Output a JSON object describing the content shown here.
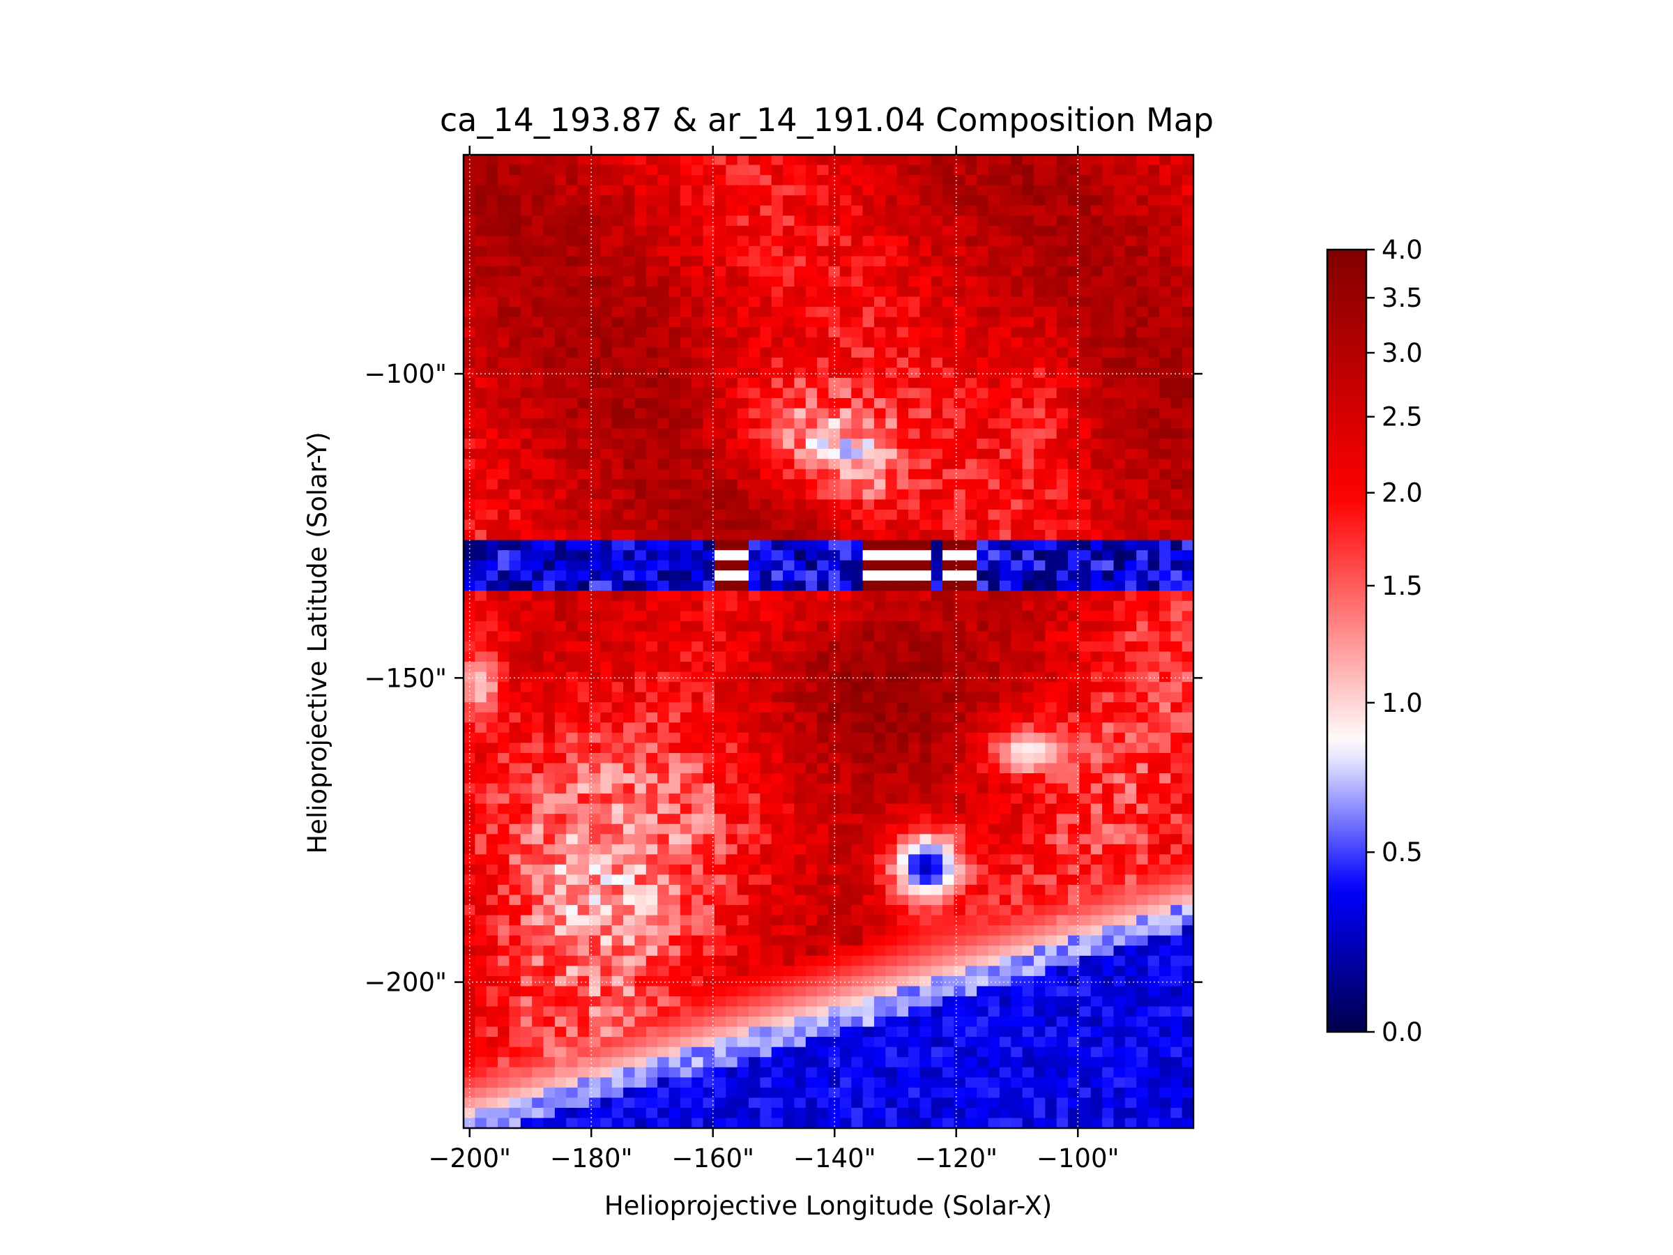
{
  "chart_data": {
    "type": "heatmap",
    "title": "ca_14_193.87 & ar_14_191.04 Composition Map",
    "xlabel": "Helioprojective Longitude (Solar-X)",
    "ylabel": "Helioprojective Latitude (Solar-Y)",
    "xlim": [
      -201,
      -81
    ],
    "ylim": [
      -224,
      -64
    ],
    "x_ticks": [
      {
        "value": -200,
        "label": "−200\""
      },
      {
        "value": -180,
        "label": "−180\""
      },
      {
        "value": -160,
        "label": "−160\""
      },
      {
        "value": -140,
        "label": "−140\""
      },
      {
        "value": -120,
        "label": "−120\""
      },
      {
        "value": -100,
        "label": "−100\""
      }
    ],
    "y_ticks": [
      {
        "value": -100,
        "label": "−100\""
      },
      {
        "value": -150,
        "label": "−150\""
      },
      {
        "value": -200,
        "label": "−200\""
      }
    ],
    "grid": true,
    "colormap": "seismic",
    "colormap_stops": [
      "#00004c",
      "#0000ff",
      "#ffffff",
      "#ff0000",
      "#800000"
    ],
    "colorbar": {
      "vmin": 0.0,
      "vmax": 4.0,
      "norm": "asinh",
      "ticks": [
        {
          "value": 0.0,
          "label": "0.0"
        },
        {
          "value": 0.5,
          "label": "0.5"
        },
        {
          "value": 1.0,
          "label": "1.0"
        },
        {
          "value": 1.5,
          "label": "1.5"
        },
        {
          "value": 2.0,
          "label": "2.0"
        },
        {
          "value": 2.5,
          "label": "2.5"
        },
        {
          "value": 3.0,
          "label": "3.0"
        },
        {
          "value": 3.5,
          "label": "3.5"
        },
        {
          "value": 4.0,
          "label": "4.0"
        }
      ]
    },
    "grid_shape": [
      64,
      96
    ],
    "features": {
      "background_upper": 2.6,
      "background_lower": 2.2,
      "blue_band": {
        "y": [
          -135,
          -128
        ],
        "value": 0.3
      },
      "blue_lower_region_value": 0.35,
      "blue_blob": {
        "x": -125,
        "y": -181,
        "value": 0.25
      },
      "blue_loop": {
        "x": -108,
        "y": -162,
        "value": 0.6
      },
      "blue_left_edge": {
        "x": -198,
        "y": -151,
        "value": 0.7
      }
    }
  }
}
